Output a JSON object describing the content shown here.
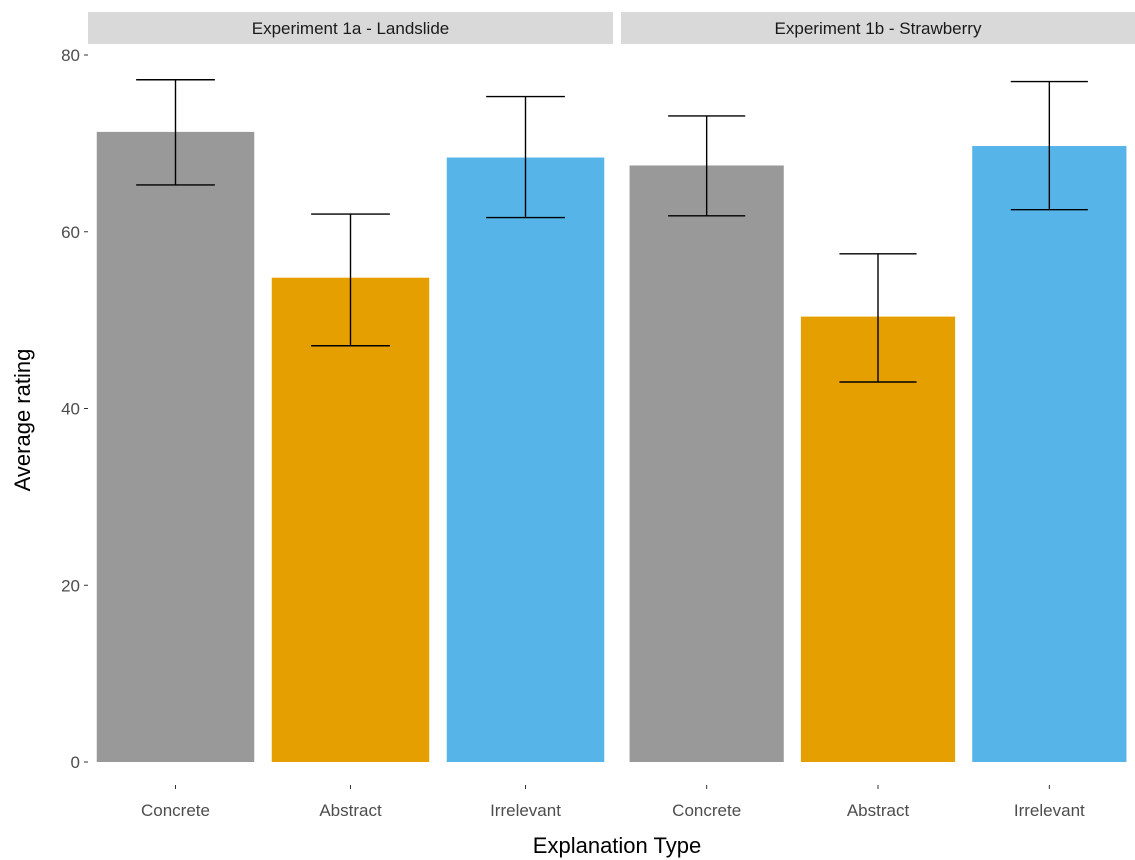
{
  "chart_data": {
    "type": "bar",
    "xlabel": "Explanation Type",
    "ylabel": "Average rating",
    "ylim": [
      0,
      80
    ],
    "yticks": [
      0,
      20,
      40,
      60,
      80
    ],
    "grid": false,
    "colors": {
      "Concrete": "#999999",
      "Abstract": "#E69F00",
      "Irrelevant": "#56B4E9"
    },
    "panels": [
      {
        "title": "Experiment 1a - Landslide",
        "categories": [
          "Concrete",
          "Abstract",
          "Irrelevant"
        ],
        "values": [
          71.3,
          54.8,
          68.4
        ],
        "error_low": [
          65.3,
          47.1,
          61.6
        ],
        "error_high": [
          77.2,
          62.0,
          75.3
        ]
      },
      {
        "title": "Experiment 1b - Strawberry",
        "categories": [
          "Concrete",
          "Abstract",
          "Irrelevant"
        ],
        "values": [
          67.5,
          50.4,
          69.7
        ],
        "error_low": [
          61.8,
          43.0,
          62.5
        ],
        "error_high": [
          73.1,
          57.5,
          77.0
        ]
      }
    ]
  }
}
